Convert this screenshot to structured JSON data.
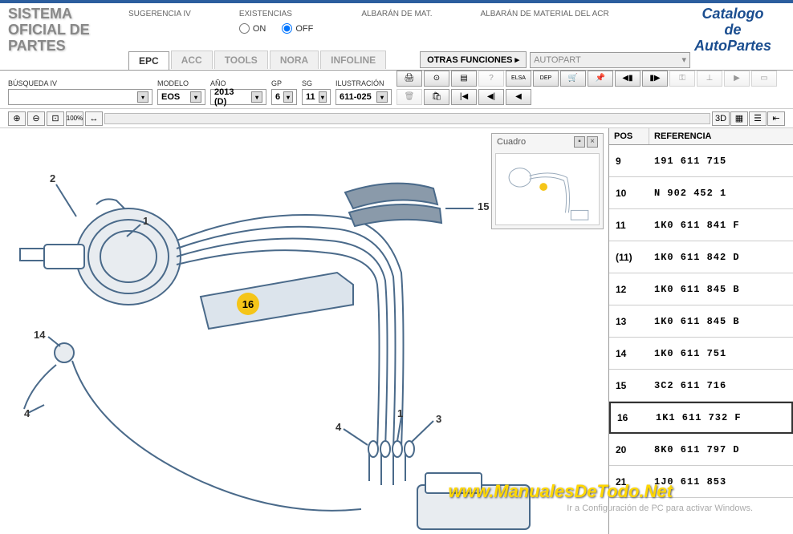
{
  "header": {
    "logo_left_l1": "SISTEMA",
    "logo_left_l2": "OFICIAL DE",
    "logo_left_l3": "PARTES",
    "logo_right_l1": "Catalogo",
    "logo_right_l2": "de",
    "logo_right_l3": "AutoPartes",
    "sugerencia_label": "SUGERENCIA IV",
    "existencias_label": "EXISTENCIAS",
    "on_label": "ON",
    "off_label": "OFF",
    "albaran_mat_label": "ALBARÁN DE MAT.",
    "albaran_acr_label": "ALBARÁN DE MATERIAL DEL ACR"
  },
  "tabs": {
    "epc": "EPC",
    "acc": "ACC",
    "tools": "TOOLS",
    "nora": "NORA",
    "infoline": "INFOLINE",
    "otras": "OTRAS FUNCIONES ▸",
    "autopart": "AUTOPART"
  },
  "filters": {
    "busqueda_label": "BÚSQUEDA IV",
    "modelo_label": "MODELO",
    "modelo_value": "EOS",
    "ano_label": "AÑO",
    "ano_value": "2013 (D)",
    "gp_label": "GP",
    "gp_value": "6",
    "sg_label": "SG",
    "sg_value": "11",
    "ilus_label": "ILUSTRACIÓN",
    "ilus_value": "611-025"
  },
  "viewer": {
    "mode_3d": "3D",
    "cuadro_title": "Cuadro"
  },
  "table": {
    "header_pos": "POS",
    "header_ref": "REFERENCIA",
    "rows": [
      {
        "pos": "9",
        "ref": "191 611 715"
      },
      {
        "pos": "10",
        "ref": "N   902 452 1"
      },
      {
        "pos": "11",
        "ref": "1K0 611 841 F"
      },
      {
        "pos": "(11)",
        "ref": "1K0 611 842 D"
      },
      {
        "pos": "12",
        "ref": "1K0 611 845 B"
      },
      {
        "pos": "13",
        "ref": "1K0 611 845 B"
      },
      {
        "pos": "14",
        "ref": "1K0 611 751"
      },
      {
        "pos": "15",
        "ref": "3C2 611 716"
      },
      {
        "pos": "16",
        "ref": "1K1 611 732 F"
      },
      {
        "pos": "20",
        "ref": "8K0 611 797 D"
      },
      {
        "pos": "21",
        "ref": "1J0 611 853"
      }
    ],
    "selected_pos": "16"
  },
  "diagram": {
    "highlight_number": "16",
    "callouts": [
      "1",
      "2",
      "3",
      "4",
      "14",
      "15"
    ],
    "stroke_color": "#4a6a8a",
    "stroke_width": 2,
    "highlight_color": "#f5c518"
  },
  "watermark": "www.ManualesDeTodo.Net",
  "activate_text": "Ir a Configuración de PC para activar Windows."
}
